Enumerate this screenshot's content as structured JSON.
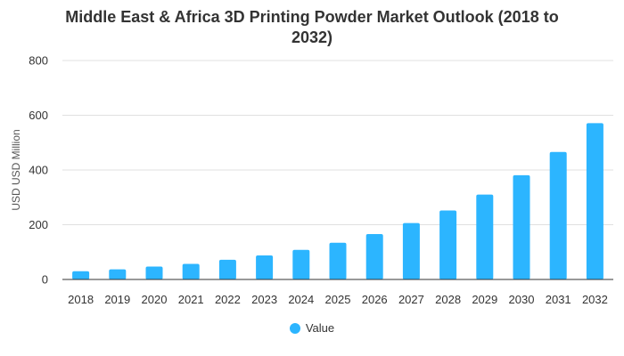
{
  "chart_data": {
    "type": "bar",
    "title_line1": "Middle East & Africa 3D Printing Powder Market Outlook (2018 to",
    "title_line2": "2032)",
    "xlabel": "",
    "ylabel": "USD USD Million",
    "ylim": [
      0,
      800
    ],
    "yticks": [
      0,
      200,
      400,
      600,
      800
    ],
    "grid": true,
    "legend_position": "bottom",
    "color": "#2cb5ff",
    "categories": [
      "2018",
      "2019",
      "2020",
      "2021",
      "2022",
      "2023",
      "2024",
      "2025",
      "2026",
      "2027",
      "2028",
      "2029",
      "2030",
      "2031",
      "2032"
    ],
    "series": [
      {
        "name": "Value",
        "values": [
          30,
          37,
          47,
          57,
          72,
          88,
          108,
          134,
          166,
          206,
          252,
          310,
          381,
          466,
          571
        ]
      }
    ]
  }
}
